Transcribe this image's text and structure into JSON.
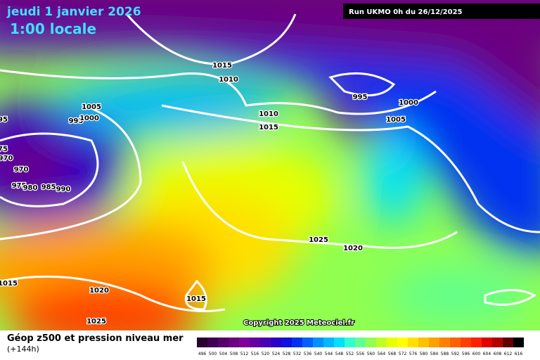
{
  "header": {
    "title": "jeudi 1 janvier 2026",
    "subtitle": "1:00 locale",
    "run": "Run UKMO 0h du 26/12/2025"
  },
  "isobar_labels": [
    1015,
    1010,
    1005,
    995,
    1000,
    95,
    75,
    970,
    970,
    975,
    980,
    985,
    990,
    995,
    1000,
    1010,
    1015,
    1005,
    1025,
    1020,
    1015,
    1020,
    1015,
    1025
  ],
  "copyright": "Copyright 2025 Meteociel.fr",
  "legend": {
    "title": "Géop z500 et pression niveau mer",
    "lead": "(+144h)",
    "labels": [
      496,
      500,
      504,
      508,
      512,
      516,
      520,
      524,
      528,
      532,
      536,
      540,
      544,
      548,
      552,
      556,
      560,
      564,
      568,
      572,
      576,
      580,
      584,
      588,
      592,
      596,
      600,
      604,
      608,
      612,
      616
    ],
    "colors": [
      "#2a0030",
      "#3d0050",
      "#55006a",
      "#6b0080",
      "#800096",
      "#6600a0",
      "#4b00b4",
      "#2d00c8",
      "#1010e0",
      "#0030f0",
      "#0060ff",
      "#0090ff",
      "#00b8ff",
      "#00e0ff",
      "#30ffd0",
      "#60ff90",
      "#90ff50",
      "#c0ff20",
      "#e8ff00",
      "#ffff00",
      "#ffe000",
      "#ffc000",
      "#ffa000",
      "#ff8000",
      "#ff6000",
      "#ff4000",
      "#ff2000",
      "#e00000",
      "#b00000",
      "#600000",
      "#000000"
    ]
  }
}
